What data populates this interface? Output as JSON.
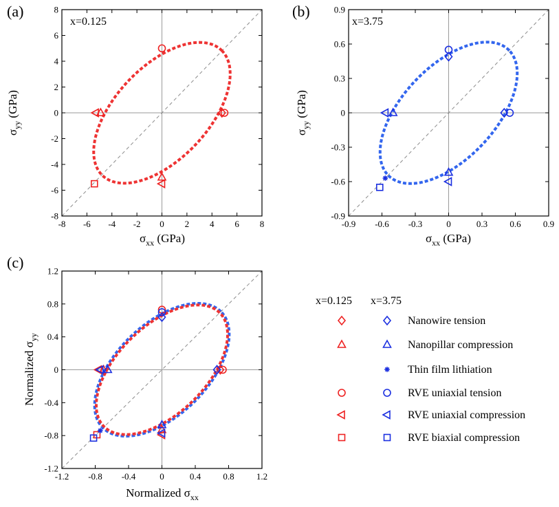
{
  "colors": {
    "x0125": "#ee2222",
    "x375": "#1b2fe0",
    "ellipse_red": "#ee3333",
    "ellipse_blue": "#3366ee"
  },
  "legend": {
    "headers": [
      "x=0.125",
      "x=3.75"
    ],
    "items": [
      {
        "label": "Nanowire tension",
        "marker": "diamond"
      },
      {
        "label": "Nanopillar compression",
        "marker": "triangle-up"
      },
      {
        "label": "Thin film lithiation",
        "marker": "asterisk"
      },
      {
        "label": "RVE uniaxial tension",
        "marker": "circle"
      },
      {
        "label": "RVE uniaxial compression",
        "marker": "triangle-left"
      },
      {
        "label": "RVE biaxial compression",
        "marker": "square"
      }
    ]
  },
  "chart_data": [
    {
      "type": "scatter",
      "panel_label": "(a)",
      "annotation": "x=0.125",
      "xlabel": "σ",
      "xlabel_sub": "xx",
      "xlabel_unit": " (GPa)",
      "ylabel": "σ",
      "ylabel_sub": "yy",
      "ylabel_unit": " (GPa)",
      "xlim": [
        -8,
        8
      ],
      "ylim": [
        -8,
        8
      ],
      "xticks": [
        "-8",
        "-6",
        "-4",
        "-2",
        "0",
        "2",
        "4",
        "6",
        "8"
      ],
      "yticks": [
        "-8",
        "-6",
        "-4",
        "-2",
        "0",
        "2",
        "4",
        "6",
        "8"
      ],
      "tick_values": [
        -8,
        -6,
        -4,
        -2,
        0,
        2,
        4,
        6,
        8
      ],
      "ellipses": [
        {
          "color": "#ee3333",
          "a": 6.8,
          "b": 3.65,
          "angle_deg": 45
        }
      ],
      "series": [
        {
          "marker": "diamond",
          "color": "#ee2222",
          "points": [
            [
              4.8,
              0
            ]
          ]
        },
        {
          "marker": "triangle-up",
          "color": "#ee2222",
          "points": [
            [
              -4.9,
              0
            ],
            [
              0,
              -5.0
            ]
          ]
        },
        {
          "marker": "circle",
          "color": "#ee2222",
          "points": [
            [
              5.0,
              0
            ],
            [
              0,
              5.0
            ]
          ]
        },
        {
          "marker": "triangle-left",
          "color": "#ee2222",
          "points": [
            [
              -5.3,
              0
            ],
            [
              0,
              -5.5
            ]
          ]
        },
        {
          "marker": "square",
          "color": "#ee2222",
          "points": [
            [
              -5.4,
              -5.5
            ]
          ]
        }
      ]
    },
    {
      "type": "scatter",
      "panel_label": "(b)",
      "annotation": "x=3.75",
      "xlabel": "σ",
      "xlabel_sub": "xx",
      "xlabel_unit": " (GPa)",
      "ylabel": "σ",
      "ylabel_sub": "yy",
      "ylabel_unit": " (GPa)",
      "xlim": [
        -0.9,
        0.9
      ],
      "ylim": [
        -0.9,
        0.9
      ],
      "xticks": [
        "-0.9",
        "-0.6",
        "-0.3",
        "0",
        "0.3",
        "0.6",
        "0.9"
      ],
      "yticks": [
        "-0.9",
        "-0.6",
        "-0.3",
        "0",
        "0.3",
        "0.6",
        "0.9"
      ],
      "tick_values": [
        -0.9,
        -0.6,
        -0.3,
        0,
        0.3,
        0.6,
        0.9
      ],
      "ellipses": [
        {
          "color": "#3366ee",
          "a": 0.77,
          "b": 0.41,
          "angle_deg": 45
        }
      ],
      "series": [
        {
          "marker": "diamond",
          "color": "#1b2fe0",
          "points": [
            [
              0.5,
              0
            ],
            [
              0,
              0.49
            ]
          ]
        },
        {
          "marker": "triangle-up",
          "color": "#1b2fe0",
          "points": [
            [
              -0.5,
              0
            ],
            [
              0,
              -0.52
            ]
          ]
        },
        {
          "marker": "asterisk",
          "color": "#1b2fe0",
          "points": [
            [
              -0.57,
              -0.57
            ]
          ]
        },
        {
          "marker": "circle",
          "color": "#1b2fe0",
          "points": [
            [
              0.55,
              0
            ],
            [
              0,
              0.55
            ]
          ]
        },
        {
          "marker": "triangle-left",
          "color": "#1b2fe0",
          "points": [
            [
              -0.57,
              0
            ],
            [
              0,
              -0.6
            ]
          ]
        },
        {
          "marker": "square",
          "color": "#1b2fe0",
          "points": [
            [
              -0.62,
              -0.65
            ]
          ]
        }
      ]
    },
    {
      "type": "scatter",
      "panel_label": "(c)",
      "annotation": "",
      "xlabel": "Normalized σ",
      "xlabel_sub": "xx",
      "xlabel_unit": "",
      "ylabel": "Normalized σ",
      "ylabel_sub": "yy",
      "ylabel_unit": "",
      "xlim": [
        -1.2,
        1.2
      ],
      "ylim": [
        -1.2,
        1.2
      ],
      "xticks": [
        "-1.2",
        "-0.8",
        "-0.4",
        "0",
        "0.4",
        "0.8",
        "1.2"
      ],
      "yticks": [
        "-1.2",
        "-0.8",
        "-0.4",
        "0",
        "0.4",
        "0.8",
        "1.2"
      ],
      "tick_values": [
        -1.2,
        -0.8,
        -0.4,
        0,
        0.4,
        0.8,
        1.2
      ],
      "ellipses": [
        {
          "color": "#3366ee",
          "a": 1.0,
          "b": 0.55,
          "angle_deg": 45
        },
        {
          "color": "#ee3333",
          "a": 0.98,
          "b": 0.53,
          "angle_deg": 45
        }
      ],
      "series": [
        {
          "marker": "diamond",
          "color": "#ee2222",
          "points": [
            [
              0.7,
              0
            ]
          ]
        },
        {
          "marker": "triangle-up",
          "color": "#ee2222",
          "points": [
            [
              -0.7,
              0
            ],
            [
              0,
              -0.73
            ]
          ]
        },
        {
          "marker": "circle",
          "color": "#ee2222",
          "points": [
            [
              0.73,
              0
            ],
            [
              0,
              0.73
            ]
          ]
        },
        {
          "marker": "triangle-left",
          "color": "#ee2222",
          "points": [
            [
              -0.76,
              0
            ],
            [
              0,
              -0.79
            ]
          ]
        },
        {
          "marker": "square",
          "color": "#ee2222",
          "points": [
            [
              -0.78,
              -0.79
            ]
          ]
        },
        {
          "marker": "diamond",
          "color": "#1b2fe0",
          "points": [
            [
              0.66,
              0
            ],
            [
              0,
              0.64
            ]
          ]
        },
        {
          "marker": "triangle-up",
          "color": "#1b2fe0",
          "points": [
            [
              -0.65,
              0
            ],
            [
              0,
              -0.67
            ]
          ]
        },
        {
          "marker": "asterisk",
          "color": "#1b2fe0",
          "points": [
            [
              -0.74,
              -0.74
            ]
          ]
        },
        {
          "marker": "circle",
          "color": "#1b2fe0",
          "points": [
            [
              0,
              0.7
            ]
          ]
        },
        {
          "marker": "triangle-left",
          "color": "#1b2fe0",
          "points": [
            [
              -0.74,
              0
            ],
            [
              0,
              -0.77
            ]
          ]
        },
        {
          "marker": "square",
          "color": "#1b2fe0",
          "points": [
            [
              -0.82,
              -0.83
            ]
          ]
        }
      ]
    }
  ]
}
